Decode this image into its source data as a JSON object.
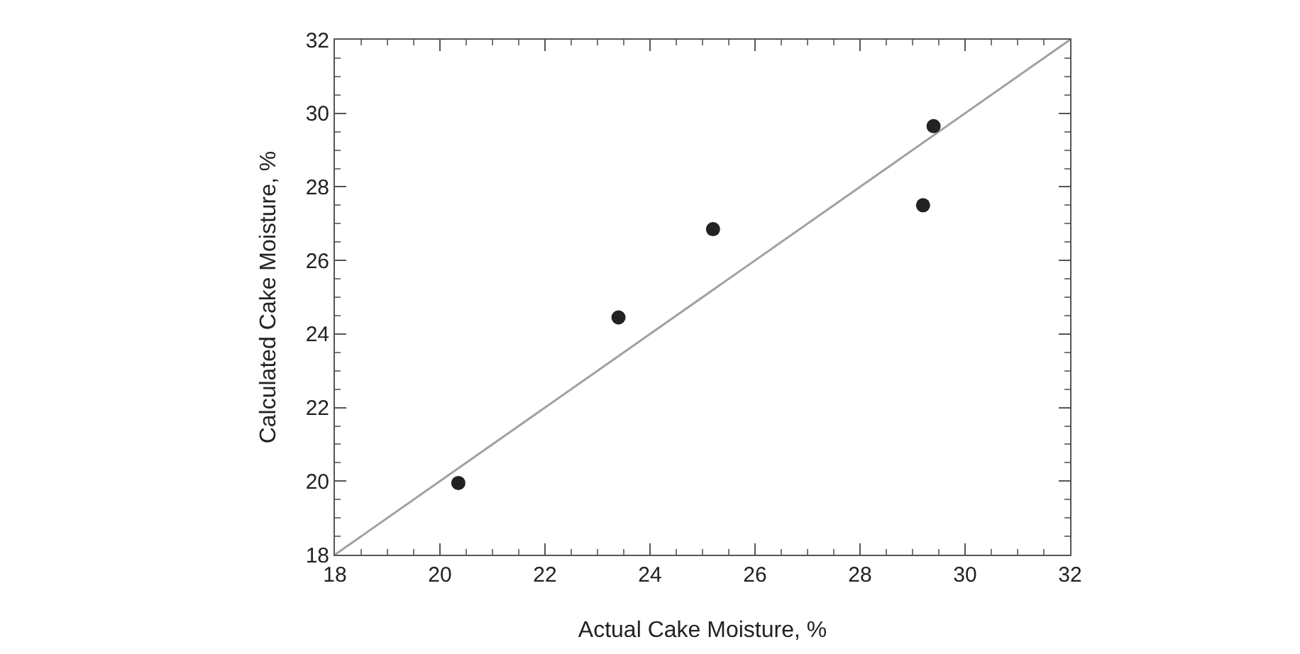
{
  "chart_data": {
    "type": "scatter",
    "xlabel": "Actual Cake Moisture, %",
    "ylabel": "Calculated Cake Moisture, %",
    "x": [
      20.35,
      23.4,
      25.2,
      29.2,
      29.4
    ],
    "series": [
      {
        "type": "scatter",
        "color": "#222222",
        "marker": "circle",
        "values": [
          19.95,
          24.45,
          26.85,
          27.5,
          29.65
        ]
      },
      {
        "type": "line",
        "color": "#a0a0a0",
        "marker": "none",
        "x": [
          18,
          32
        ],
        "values": [
          18,
          32
        ]
      }
    ],
    "xlim": [
      18,
      32
    ],
    "ylim": [
      18,
      32
    ],
    "xticks": [
      18,
      20,
      22,
      24,
      26,
      28,
      30,
      32
    ],
    "yticks": [
      18,
      20,
      22,
      24,
      26,
      28,
      30,
      32
    ],
    "grid": false,
    "legend": false,
    "line_style": "solid"
  }
}
